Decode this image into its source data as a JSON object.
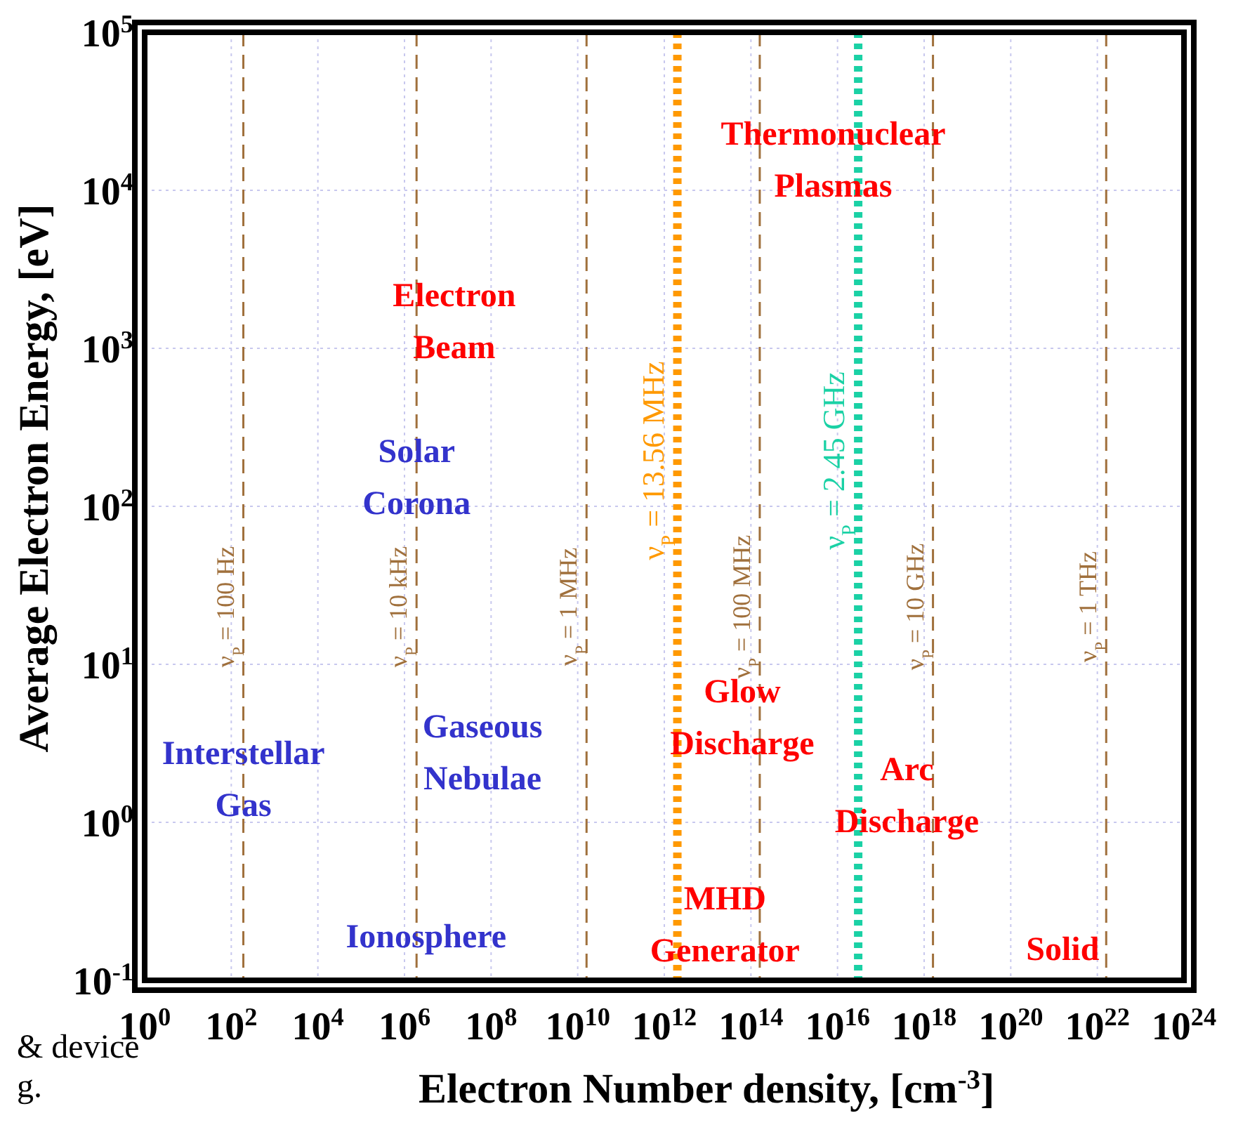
{
  "chart_data": {
    "type": "scatter",
    "log": "xy",
    "xlabel": "Electron Number density, [cm$^{-3}$]",
    "ylabel": "Average Electron Energy, [eV]",
    "xlim": [
      1,
      1e+24
    ],
    "ylim": [
      0.1,
      100000
    ],
    "xticks": [
      {
        "value": 1,
        "label": "10$^{0}$"
      },
      {
        "value": 100,
        "label": "10$^{2}$"
      },
      {
        "value": 10000,
        "label": "10$^{4}$"
      },
      {
        "value": 1000000.0,
        "label": "10$^{6}$"
      },
      {
        "value": 100000000.0,
        "label": "10$^{8}$"
      },
      {
        "value": 10000000000.0,
        "label": "10$^{10}$"
      },
      {
        "value": 1000000000000.0,
        "label": "10$^{12}$"
      },
      {
        "value": 100000000000000.0,
        "label": "10$^{14}$"
      },
      {
        "value": 1e+16,
        "label": "10$^{16}$"
      },
      {
        "value": 1e+18,
        "label": "10$^{18}$"
      },
      {
        "value": 1e+20,
        "label": "10$^{20}$"
      },
      {
        "value": 1e+22,
        "label": "10$^{22}$"
      },
      {
        "value": 1e+24,
        "label": "10$^{24}$"
      }
    ],
    "yticks": [
      {
        "value": 0.1,
        "label": "10$^{-1}$"
      },
      {
        "value": 1,
        "label": "10$^{0}$"
      },
      {
        "value": 10,
        "label": "10$^{1}$"
      },
      {
        "value": 100,
        "label": "10$^{2}$"
      },
      {
        "value": 1000,
        "label": "10$^{3}$"
      },
      {
        "value": 10000,
        "label": "10$^{4}$"
      },
      {
        "value": 100000,
        "label": "10$^{5}$"
      }
    ],
    "grid": true,
    "ref_lines": [
      {
        "axis": "x",
        "value": 190,
        "color": "#a0703c",
        "line_style": "dashed"
      },
      {
        "axis": "x",
        "value": 1900000.0,
        "color": "#a0703c",
        "line_style": "dashed"
      },
      {
        "axis": "x",
        "value": 16000000000.0,
        "color": "#a0703c",
        "line_style": "dashed"
      },
      {
        "axis": "x",
        "value": 2000000000000.0,
        "color": "#ff9900",
        "line_style": "dotted"
      },
      {
        "axis": "x",
        "value": 160000000000000.0,
        "color": "#a0703c",
        "line_style": "dashed"
      },
      {
        "axis": "x",
        "value": 3e+16,
        "color": "#1ad1a5",
        "line_style": "dotted"
      },
      {
        "axis": "x",
        "value": 1.6e+18,
        "color": "#a0703c",
        "line_style": "dashed"
      },
      {
        "axis": "x",
        "value": 1.6e+22,
        "color": "#a0703c",
        "line_style": "dashed"
      }
    ],
    "annotations": [
      "ν$_{P}$ = 100 Hz",
      "ν$_{P}$ = 10 kHz",
      "ν$_{P}$ = 1 MHz",
      "ν$_{P}$ = 13.56 MHz",
      "ν$_{P}$ = 100 MHz",
      "ν$_{P}$ = 2.45 GHz",
      "ν$_{P}$ = 10 GHz",
      "ν$_{P}$ = 1 THz",
      "Thermonuclear\nPlasmas",
      "Electron\nBeam",
      "Solar\nCorona",
      "Interstellar\nGas",
      "Gaseous\nNebulae",
      "Ionosphere",
      "Glow\nDischarge",
      "Arc\nDischarge",
      "MHD\nGenerator",
      "Solid",
      "& device",
      "g."
    ]
  }
}
